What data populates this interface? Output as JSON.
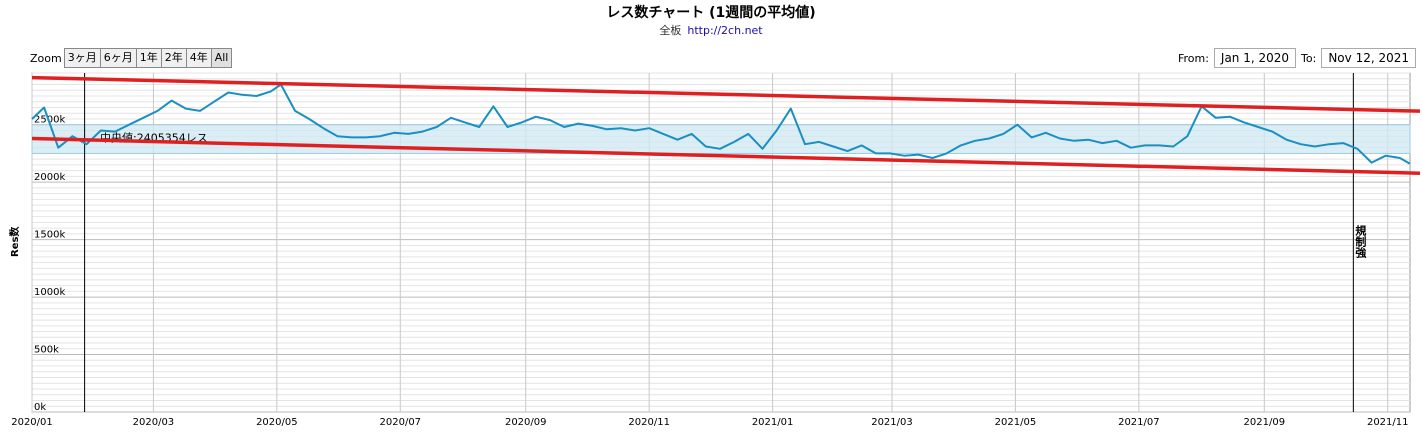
{
  "header": {
    "title": "レス数チャート (1週間の平均値)",
    "subtitle_prefix": "全板",
    "subtitle_link": "http://2ch.net"
  },
  "controls": {
    "zoom_label": "Zoom",
    "zoom_buttons": [
      "3ヶ月",
      "6ヶ月",
      "1年",
      "2年",
      "4年",
      "All"
    ],
    "from_label": "From:",
    "from_value": "Jan 1, 2020",
    "to_label": "To:",
    "to_value": "Nov 12, 2021"
  },
  "colors": {
    "series": "#1b8fc2",
    "band_fill": "#cfe8f3",
    "trend": "#e02020",
    "grid": "#c8c8c8"
  },
  "chart_data": {
    "type": "line",
    "ylabel": "Res数",
    "ylim": [
      0,
      2950000
    ],
    "y_ticks": [
      0,
      500000,
      1000000,
      1500000,
      2000000,
      2500000
    ],
    "y_tick_labels": [
      "0k",
      "500k",
      "1000k",
      "1500k",
      "2000k",
      "2500k"
    ],
    "x_range": [
      "2020-01-01",
      "2021-11-12"
    ],
    "x_tick_labels": [
      {
        "date": "2020-01-01",
        "label": "2020/01"
      },
      {
        "date": "2020-03-01",
        "label": "2020/03"
      },
      {
        "date": "2020-05-01",
        "label": "2020/05"
      },
      {
        "date": "2020-07-01",
        "label": "2020/07"
      },
      {
        "date": "2020-09-01",
        "label": "2020/09"
      },
      {
        "date": "2020-11-01",
        "label": "2020/11"
      },
      {
        "date": "2021-01-01",
        "label": "2021/01"
      },
      {
        "date": "2021-03-01",
        "label": "2021/03"
      },
      {
        "date": "2021-05-01",
        "label": "2021/05"
      },
      {
        "date": "2021-07-01",
        "label": "2021/07"
      },
      {
        "date": "2021-09-01",
        "label": "2021/09"
      },
      {
        "date": "2021-11-01",
        "label": "2021/11"
      }
    ],
    "band": {
      "low": 2250000,
      "high": 2500000
    },
    "median_label": "中央値:2405354レス",
    "event_lines": [
      {
        "date": "2020-01-27",
        "label": ""
      },
      {
        "date": "2021-10-15",
        "label": "規制強"
      }
    ],
    "trend_lines": [
      {
        "start": [
          "2020-01-01",
          2910000
        ],
        "end": [
          "2021-11-12",
          2620000
        ]
      },
      {
        "start": [
          "2020-01-01",
          2380000
        ],
        "end": [
          "2021-11-12",
          2080000
        ]
      }
    ],
    "series": [
      {
        "x": [
          "2020-01-01",
          "2020-01-07",
          "2020-01-14",
          "2020-01-21",
          "2020-01-28",
          "2020-02-04",
          "2020-02-11",
          "2020-02-18",
          "2020-02-25",
          "2020-03-03",
          "2020-03-10",
          "2020-03-17",
          "2020-03-24",
          "2020-03-31",
          "2020-04-07",
          "2020-04-14",
          "2020-04-21",
          "2020-04-28",
          "2020-05-03",
          "2020-05-10",
          "2020-05-17",
          "2020-05-24",
          "2020-05-31",
          "2020-06-07",
          "2020-06-14",
          "2020-06-21",
          "2020-06-28",
          "2020-07-05",
          "2020-07-12",
          "2020-07-19",
          "2020-07-26",
          "2020-08-02",
          "2020-08-09",
          "2020-08-16",
          "2020-08-23",
          "2020-08-30",
          "2020-09-06",
          "2020-09-13",
          "2020-09-20",
          "2020-09-27",
          "2020-10-04",
          "2020-10-11",
          "2020-10-18",
          "2020-10-25",
          "2020-11-01",
          "2020-11-08",
          "2020-11-15",
          "2020-11-22",
          "2020-11-29",
          "2020-12-06",
          "2020-12-13",
          "2020-12-20",
          "2020-12-27",
          "2021-01-03",
          "2021-01-10",
          "2021-01-17",
          "2021-01-24",
          "2021-01-31",
          "2021-02-07",
          "2021-02-14",
          "2021-02-21",
          "2021-02-28",
          "2021-03-07",
          "2021-03-14",
          "2021-03-21",
          "2021-03-28",
          "2021-04-04",
          "2021-04-11",
          "2021-04-18",
          "2021-04-25",
          "2021-05-02",
          "2021-05-09",
          "2021-05-16",
          "2021-05-23",
          "2021-05-30",
          "2021-06-06",
          "2021-06-13",
          "2021-06-20",
          "2021-06-27",
          "2021-07-04",
          "2021-07-11",
          "2021-07-18",
          "2021-07-25",
          "2021-08-01",
          "2021-08-08",
          "2021-08-15",
          "2021-08-22",
          "2021-08-29",
          "2021-09-05",
          "2021-09-12",
          "2021-09-19",
          "2021-09-26",
          "2021-10-03",
          "2021-10-10",
          "2021-10-17",
          "2021-10-24",
          "2021-10-31",
          "2021-11-07",
          "2021-11-12"
        ],
        "values": [
          2550000,
          2650000,
          2300000,
          2400000,
          2330000,
          2450000,
          2440000,
          2500000,
          2560000,
          2620000,
          2710000,
          2640000,
          2620000,
          2700000,
          2780000,
          2760000,
          2750000,
          2790000,
          2850000,
          2620000,
          2550000,
          2470000,
          2400000,
          2390000,
          2390000,
          2400000,
          2430000,
          2420000,
          2440000,
          2480000,
          2560000,
          2520000,
          2480000,
          2660000,
          2480000,
          2520000,
          2570000,
          2540000,
          2480000,
          2510000,
          2490000,
          2460000,
          2470000,
          2450000,
          2470000,
          2420000,
          2370000,
          2420000,
          2310000,
          2290000,
          2350000,
          2420000,
          2290000,
          2450000,
          2640000,
          2330000,
          2350000,
          2310000,
          2270000,
          2320000,
          2250000,
          2250000,
          2230000,
          2240000,
          2210000,
          2250000,
          2320000,
          2360000,
          2380000,
          2420000,
          2500000,
          2390000,
          2430000,
          2380000,
          2360000,
          2370000,
          2340000,
          2360000,
          2300000,
          2320000,
          2320000,
          2310000,
          2400000,
          2660000,
          2560000,
          2570000,
          2520000,
          2480000,
          2440000,
          2370000,
          2330000,
          2310000,
          2330000,
          2340000,
          2290000,
          2170000,
          2230000,
          2210000,
          2160000
        ]
      }
    ]
  }
}
